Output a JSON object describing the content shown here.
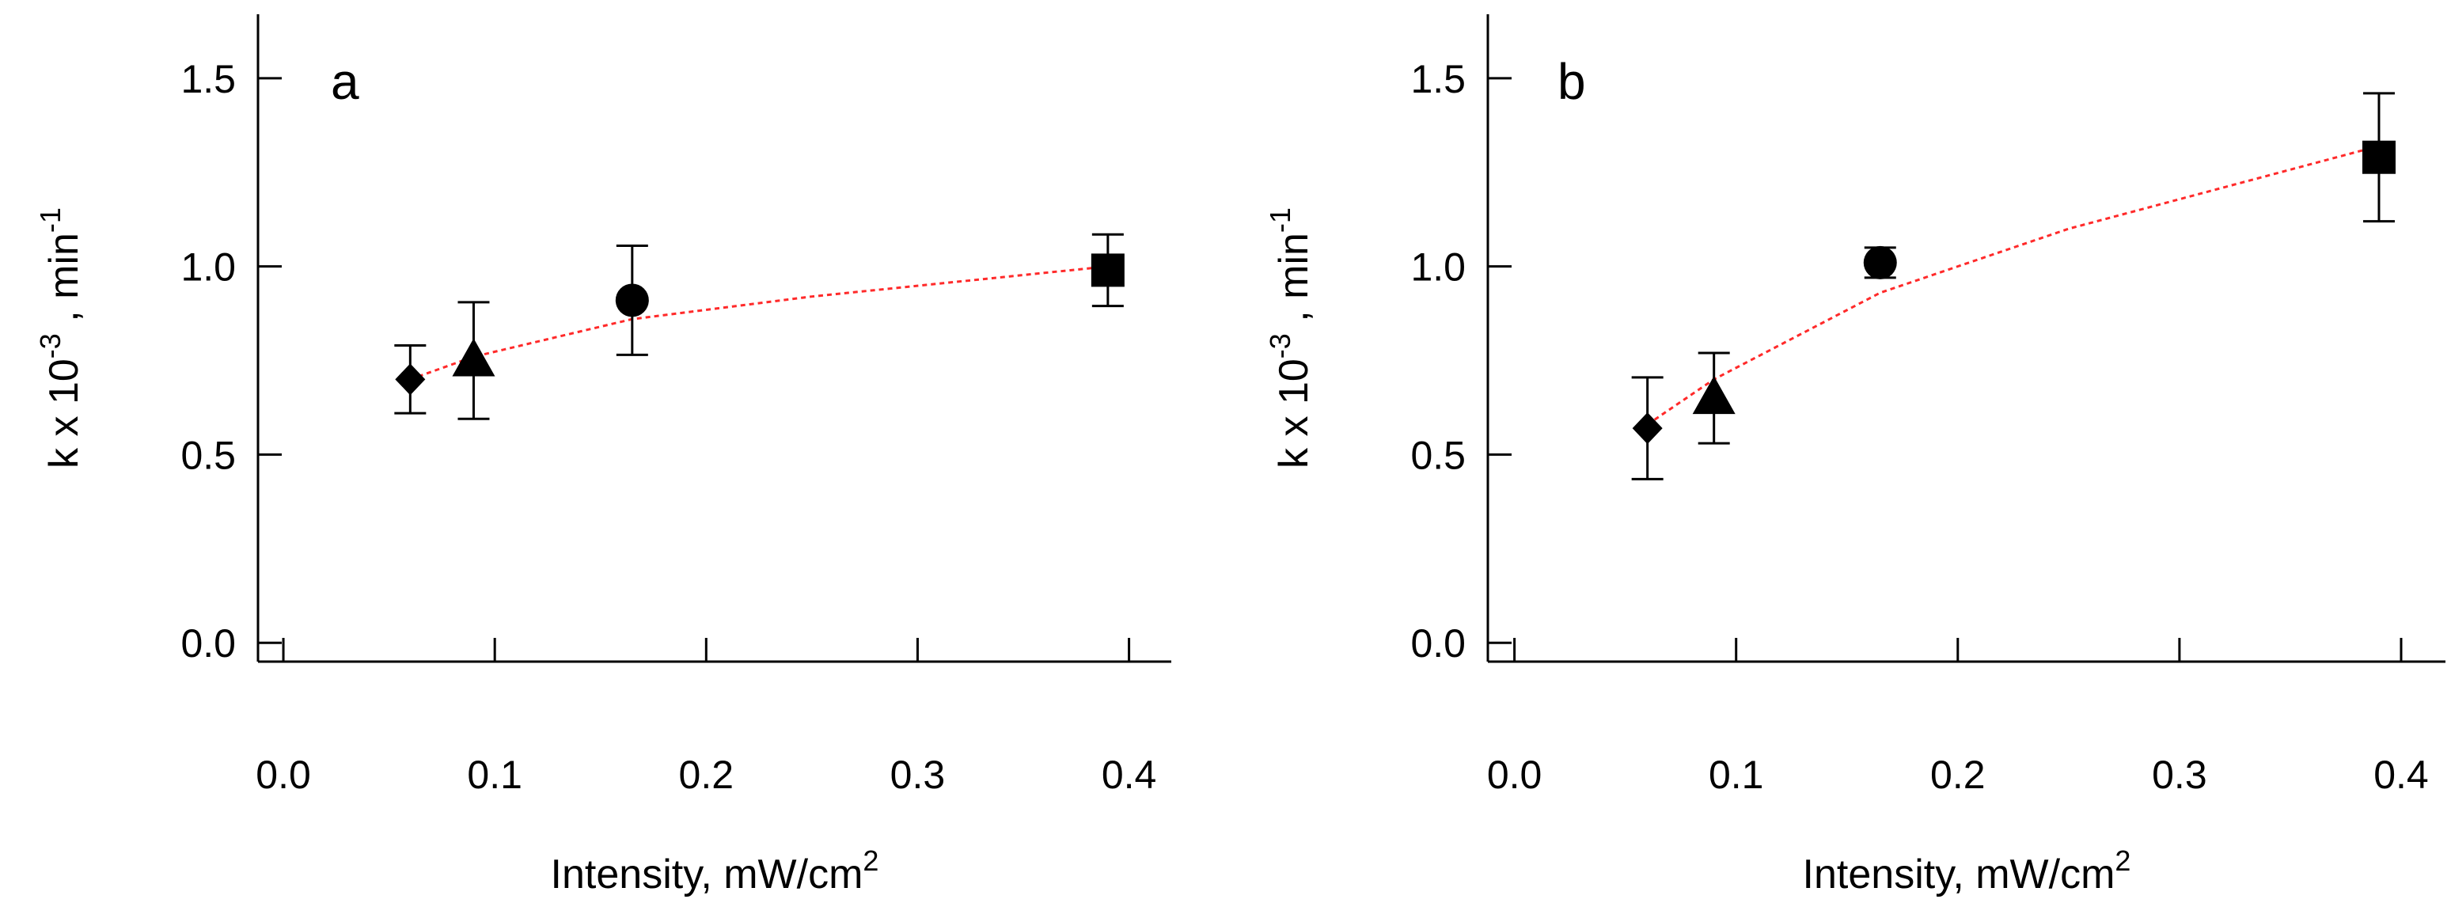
{
  "chart_data": [
    {
      "type": "scatter",
      "panel_label": "a",
      "xlabel": "Intensity, mW/cm",
      "xlabel_sup": "2",
      "ylabel": "k x 10",
      "ylabel_sup": "-3",
      "ylabel_suffix": " , min",
      "ylabel_suffix_sup": "-1",
      "xlim": [
        -0.012,
        0.42
      ],
      "ylim": [
        -0.05,
        1.67
      ],
      "x_ticks": [
        0.0,
        0.1,
        0.2,
        0.3,
        0.4
      ],
      "x_tick_labels": [
        "0.0",
        "0.1",
        "0.2",
        "0.3",
        "0.4"
      ],
      "y_ticks": [
        0.0,
        0.5,
        1.0,
        1.5
      ],
      "y_tick_labels": [
        "0.0",
        "0.5",
        "1.0",
        "1.5"
      ],
      "grid": false,
      "points": [
        {
          "marker": "diamond",
          "x": 0.06,
          "y": 0.7,
          "err": 0.09
        },
        {
          "marker": "triangle",
          "x": 0.09,
          "y": 0.75,
          "err": 0.155
        },
        {
          "marker": "circle",
          "x": 0.165,
          "y": 0.91,
          "err": 0.145
        },
        {
          "marker": "square",
          "x": 0.39,
          "y": 0.99,
          "err": 0.095
        }
      ],
      "fit_line": {
        "style": "dotted",
        "color": "#ff2a2a",
        "x": [
          0.06,
          0.09,
          0.165,
          0.25,
          0.32,
          0.39
        ],
        "y": [
          0.7,
          0.76,
          0.86,
          0.92,
          0.96,
          1.0
        ]
      }
    },
    {
      "type": "scatter",
      "panel_label": "b",
      "xlabel": "Intensity, mW/cm",
      "xlabel_sup": "2",
      "ylabel": "k x 10",
      "ylabel_sup": "-3",
      "ylabel_suffix": " , min",
      "ylabel_suffix_sup": "-1",
      "xlim": [
        -0.012,
        0.42
      ],
      "ylim": [
        -0.05,
        1.67
      ],
      "x_ticks": [
        0.0,
        0.1,
        0.2,
        0.3,
        0.4
      ],
      "x_tick_labels": [
        "0.0",
        "0.1",
        "0.2",
        "0.3",
        "0.4"
      ],
      "y_ticks": [
        0.0,
        0.5,
        1.0,
        1.5
      ],
      "y_tick_labels": [
        "0.0",
        "0.5",
        "1.0",
        "1.5"
      ],
      "grid": false,
      "points": [
        {
          "marker": "diamond",
          "x": 0.06,
          "y": 0.57,
          "err": 0.135
        },
        {
          "marker": "triangle",
          "x": 0.09,
          "y": 0.65,
          "err": 0.12
        },
        {
          "marker": "circle",
          "x": 0.165,
          "y": 1.01,
          "err": 0.04
        },
        {
          "marker": "square",
          "x": 0.39,
          "y": 1.29,
          "err": 0.17
        }
      ],
      "fit_line": {
        "style": "dotted",
        "color": "#ff2a2a",
        "x": [
          0.06,
          0.09,
          0.165,
          0.25,
          0.32,
          0.39
        ],
        "y": [
          0.58,
          0.7,
          0.93,
          1.1,
          1.21,
          1.32
        ]
      }
    }
  ]
}
